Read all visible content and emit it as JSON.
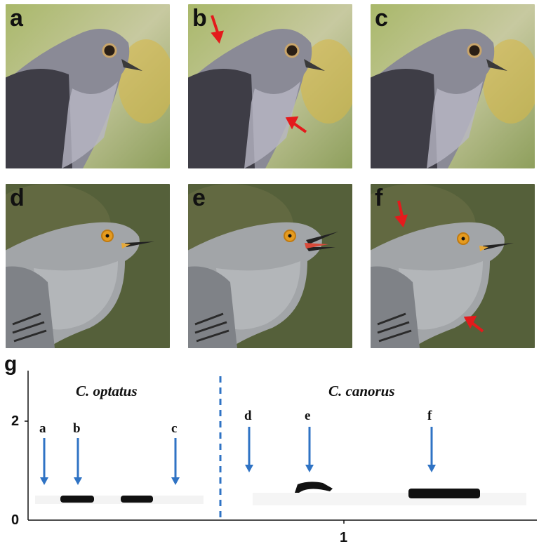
{
  "panels": [
    {
      "label": "a",
      "species": "optatus",
      "has_arrows": false,
      "open_beak": false
    },
    {
      "label": "b",
      "species": "optatus",
      "has_arrows": true,
      "open_beak": false
    },
    {
      "label": "c",
      "species": "optatus",
      "has_arrows": false,
      "open_beak": false
    },
    {
      "label": "d",
      "species": "canorus",
      "has_arrows": false,
      "open_beak": false
    },
    {
      "label": "e",
      "species": "canorus",
      "has_arrows": false,
      "open_beak": true
    },
    {
      "label": "f",
      "species": "canorus",
      "has_arrows": true,
      "open_beak": false
    }
  ],
  "spectrogram": {
    "label": "g",
    "left_species": "C. optatus",
    "right_species": "C. canorus",
    "y_ticks": [
      "2",
      "0"
    ],
    "x_ticks": [
      "1"
    ],
    "markers": [
      "a",
      "b",
      "c",
      "d",
      "e",
      "f"
    ]
  },
  "colors": {
    "arrow_red": "#e41a1c",
    "marker_blue": "#2f73c4",
    "optatus_bg": "#9aa66e",
    "canorus_bg": "#55603a"
  }
}
